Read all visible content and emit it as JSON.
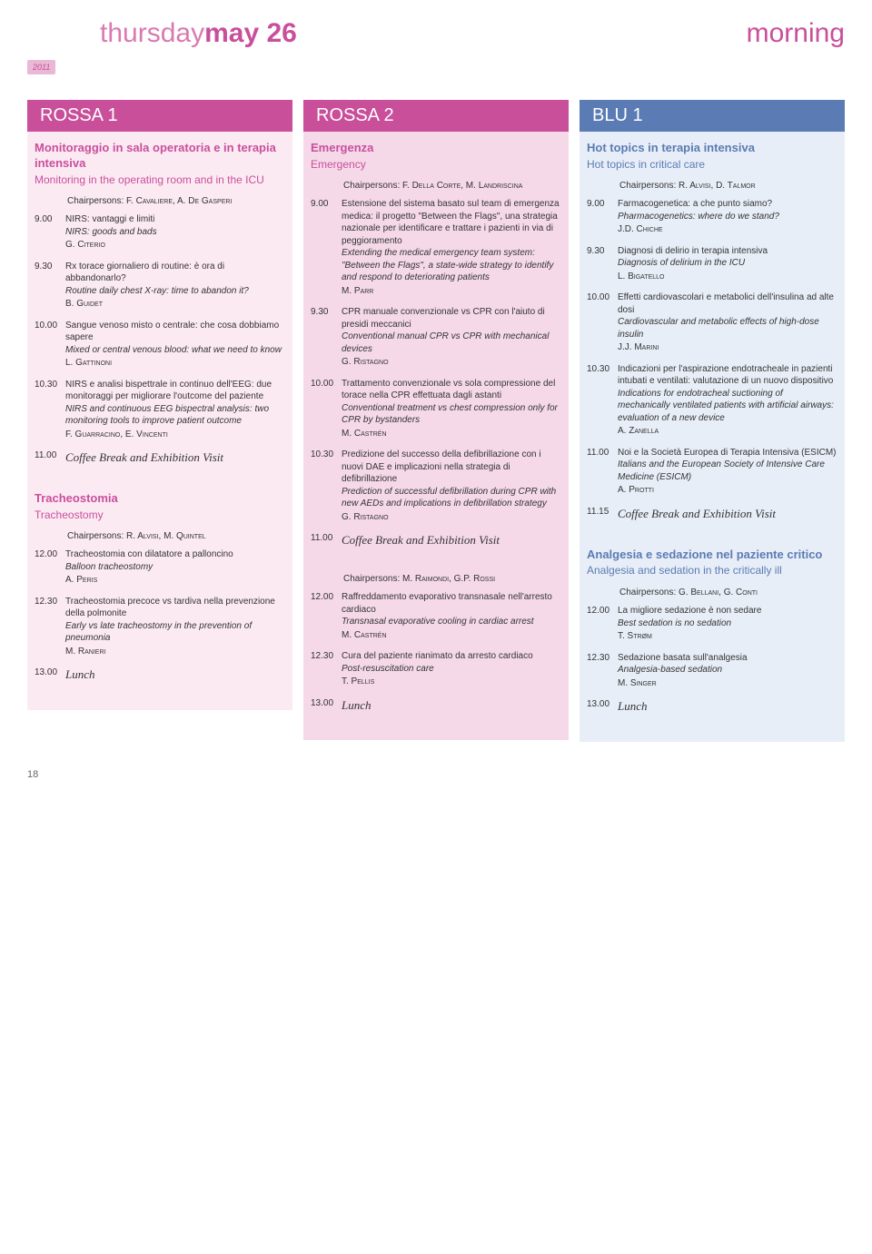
{
  "header": {
    "day_light": "thursday",
    "day_bold": "may 26",
    "morning": "morning",
    "year": "2011"
  },
  "columns": [
    {
      "head": "ROSSA 1",
      "sessions": [
        {
          "title_it": "Monitoraggio in sala operatoria e in terapia intensiva",
          "title_en": "Monitoring in the operating room and in the ICU",
          "chair_label": "Chairpersons: ",
          "chair": "F. Cavaliere, A. De Gasperi",
          "entries": [
            {
              "time": "9.00",
              "it": "NIRS: vantaggi e limiti",
              "en": "NIRS: goods and bads",
              "sp": "G. Citerio"
            },
            {
              "time": "9.30",
              "it": "Rx torace giornaliero di routine: è ora di abbandonarlo?",
              "en": "Routine daily chest X-ray: time to abandon it?",
              "sp": "B. Guidet"
            },
            {
              "time": "10.00",
              "it": "Sangue venoso misto o centrale: che cosa dobbiamo sapere",
              "en": "Mixed or central venous blood: what we need to know",
              "sp": "L. Gattinoni"
            },
            {
              "time": "10.30",
              "it": "NIRS e analisi bispettrale in continuo dell'EEG: due monitoraggi per migliorare l'outcome del paziente",
              "en": "NIRS and continuous EEG bispectral analysis: two monitoring tools to improve patient outcome",
              "sp": "F. Guarracino, E. Vincenti"
            },
            {
              "time": "11.00",
              "break": "Coffee Break and Exhibition Visit"
            }
          ]
        },
        {
          "title_it": "Tracheostomia",
          "title_en": "Tracheostomy",
          "chair_label": "Chairpersons: ",
          "chair": "R. Alvisi, M. Quintel",
          "entries": [
            {
              "time": "12.00",
              "it": "Tracheostomia con dilatatore a palloncino",
              "en": "Balloon tracheostomy",
              "sp": "A. Peris"
            },
            {
              "time": "12.30",
              "it": "Tracheostomia precoce vs tardiva nella prevenzione della polmonite",
              "en": "Early vs late tracheostomy in the prevention of pneumonia",
              "sp": "M. Ranieri"
            },
            {
              "time": "13.00",
              "break": "Lunch"
            }
          ]
        }
      ]
    },
    {
      "head": "ROSSA 2",
      "sessions": [
        {
          "title_it": "Emergenza",
          "title_en": "Emergency",
          "chair_label": "Chairpersons: ",
          "chair": "F. Della Corte, M. Landriscina",
          "entries": [
            {
              "time": "9.00",
              "it": "Estensione del sistema basato sul team di emergenza medica: il progetto \"Between the Flags\", una strategia nazionale per identificare e trattare i pazienti in via di peggioramento",
              "en": "Extending the medical emergency team system: \"Between the Flags\", a state-wide strategy to identify and respond to deteriorating patients",
              "sp": "M. Parr"
            },
            {
              "time": "9.30",
              "it": "CPR manuale convenzionale vs CPR con l'aiuto di presidi meccanici",
              "en": "Conventional manual CPR vs CPR with mechanical devices",
              "sp": "G. Ristagno"
            },
            {
              "time": "10.00",
              "it": "Trattamento convenzionale vs sola compressione del torace nella CPR effettuata dagli astanti",
              "en": "Conventional treatment vs chest compression only for CPR by bystanders",
              "sp": "M. Castrén"
            },
            {
              "time": "10.30",
              "it": "Predizione del successo della defibrillazione con i nuovi DAE e implicazioni nella strategia di defibrillazione",
              "en": "Prediction of successful defibrillation during CPR with new AEDs and implications in defibrillation strategy",
              "sp": "G. Ristagno"
            },
            {
              "time": "11.00",
              "break": "Coffee Break and Exhibition Visit"
            }
          ]
        },
        {
          "chair_label": "Chairpersons: ",
          "chair": "M. Raimondi, G.P. Rossi",
          "entries": [
            {
              "time": "12.00",
              "it": "Raffreddamento evaporativo transnasale nell'arresto cardiaco",
              "en": "Transnasal evaporative cooling in cardiac arrest",
              "sp": "M. Castrén"
            },
            {
              "time": "12.30",
              "it": "Cura del paziente rianimato da arresto cardiaco",
              "en": "Post-resuscitation care",
              "sp": "T. Pellis"
            },
            {
              "time": "13.00",
              "break": "Lunch"
            }
          ]
        }
      ]
    },
    {
      "head": "BLU 1",
      "sessions": [
        {
          "title_it": "Hot topics in terapia intensiva",
          "title_en": "Hot topics in critical care",
          "chair_label": "Chairpersons: ",
          "chair": "R. Alvisi, D. Talmor",
          "entries": [
            {
              "time": "9.00",
              "it": "Farmacogenetica: a che punto siamo?",
              "en": "Pharmacogenetics: where do we stand?",
              "sp": "J.D. Chiche"
            },
            {
              "time": "9.30",
              "it": "Diagnosi di delirio in terapia intensiva",
              "en": "Diagnosis of delirium in the ICU",
              "sp": "L. Bigatello"
            },
            {
              "time": "10.00",
              "it": "Effetti cardiovascolari e metabolici dell'insulina ad alte dosi",
              "en": "Cardiovascular and metabolic effects of high-dose insulin",
              "sp": "J.J. Marini"
            },
            {
              "time": "10.30",
              "it": "Indicazioni per l'aspirazione endotracheale in pazienti intubati e ventilati: valutazione di un nuovo dispositivo",
              "en": "Indications for endotracheal suctioning of mechanically ventilated patients with artificial airways: evaluation of a new device",
              "sp": "A. Zanella"
            },
            {
              "time": "11.00",
              "it": "Noi e la Società Europea di Terapia Intensiva (ESICM)",
              "en": "Italians and the European Society of Intensive Care Medicine (ESICM)",
              "sp": "A. Protti"
            },
            {
              "time": "11.15",
              "break": "Coffee Break and Exhibition Visit"
            }
          ]
        },
        {
          "title_it": "Analgesia e sedazione nel paziente critico",
          "title_en": "Analgesia and sedation in the critically ill",
          "chair_label": "Chairpersons: ",
          "chair": "G. Bellani, G. Conti",
          "entries": [
            {
              "time": "12.00",
              "it": "La migliore sedazione è non sedare",
              "en": "Best sedation is no sedation",
              "sp": "T. Strøm"
            },
            {
              "time": "12.30",
              "it": "Sedazione basata sull'analgesia",
              "en": "Analgesia-based sedation",
              "sp": "M. Singer"
            },
            {
              "time": "13.00",
              "break": "Lunch"
            }
          ]
        }
      ]
    }
  ],
  "page": "18"
}
